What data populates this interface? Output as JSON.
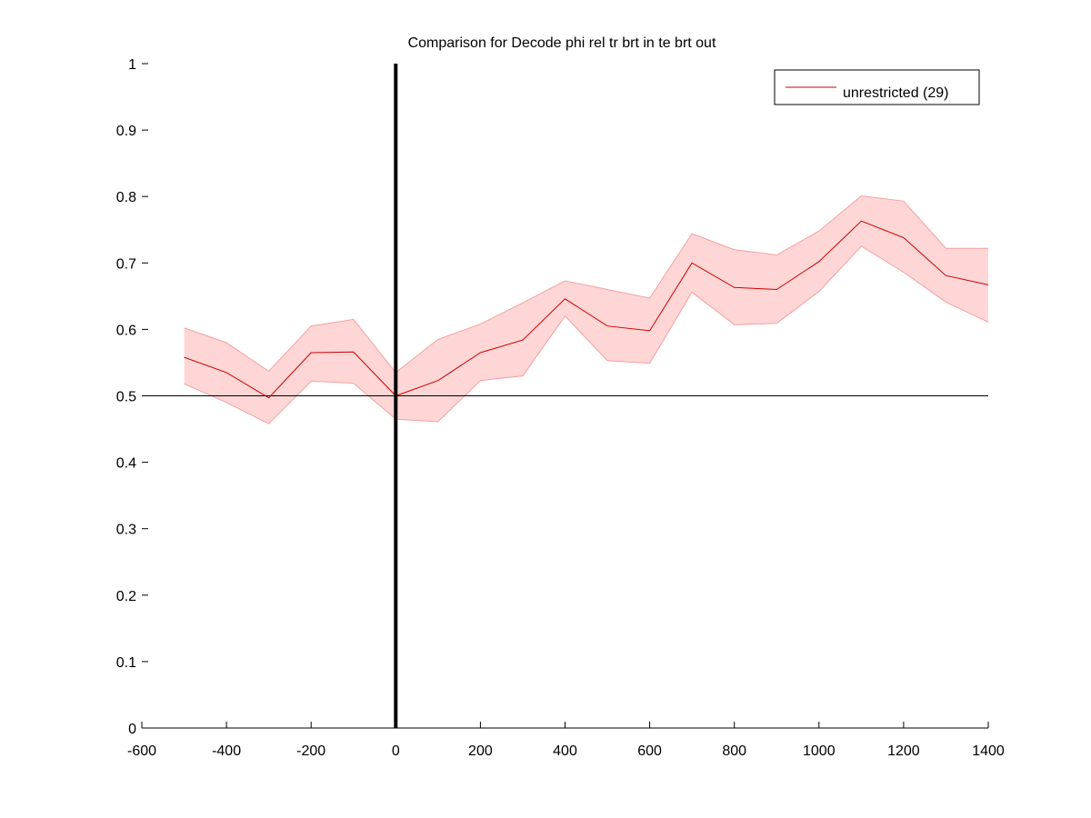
{
  "chart_data": {
    "type": "line",
    "title": "Comparison for Decode phi rel tr brt in te brt out",
    "xlabel": "",
    "ylabel": "",
    "xlim": [
      -600,
      1400
    ],
    "ylim": [
      0,
      1
    ],
    "xticks": [
      -600,
      -400,
      -200,
      0,
      200,
      400,
      600,
      800,
      1000,
      1200,
      1400
    ],
    "yticks": [
      0,
      0.1,
      0.2,
      0.3,
      0.4,
      0.5,
      0.6,
      0.7,
      0.8,
      0.9,
      1
    ],
    "grid": false,
    "legend_position": "top-right",
    "reference_lines": {
      "horizontal_y": 0.5,
      "vertical_x": 0
    },
    "series": [
      {
        "name": "unrestricted (29)",
        "color": "#cc0000",
        "band_color": "#ffd6d6",
        "x": [
          -500,
          -400,
          -300,
          -200,
          -100,
          0,
          100,
          200,
          300,
          400,
          500,
          600,
          700,
          800,
          900,
          1000,
          1100,
          1200,
          1300,
          1400
        ],
        "y": [
          0.558,
          0.535,
          0.497,
          0.565,
          0.566,
          0.5,
          0.523,
          0.565,
          0.584,
          0.646,
          0.605,
          0.598,
          0.7,
          0.663,
          0.66,
          0.702,
          0.763,
          0.738,
          0.681,
          0.667
        ],
        "lower": [
          0.518,
          0.49,
          0.458,
          0.522,
          0.519,
          0.465,
          0.461,
          0.523,
          0.53,
          0.62,
          0.553,
          0.549,
          0.656,
          0.607,
          0.609,
          0.657,
          0.725,
          0.686,
          0.641,
          0.611
        ],
        "upper": [
          0.602,
          0.58,
          0.537,
          0.605,
          0.615,
          0.535,
          0.585,
          0.608,
          0.64,
          0.673,
          0.66,
          0.647,
          0.744,
          0.72,
          0.712,
          0.748,
          0.801,
          0.793,
          0.722,
          0.722
        ]
      }
    ]
  }
}
